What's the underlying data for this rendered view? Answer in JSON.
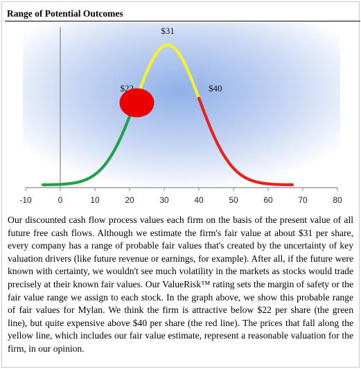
{
  "header": {
    "title": "Range of Potential Outcomes"
  },
  "colors": {
    "low": "#22a04b",
    "fair": "#f5f228",
    "high": "#e8201e",
    "marker": "#ee0000",
    "background_center": "#8fb0e8",
    "background_edge": "#ffffff"
  },
  "chart_data": {
    "type": "line",
    "title": "",
    "xlabel": "",
    "ylabel": "",
    "xlim": [
      -10,
      80
    ],
    "x_ticks": [
      -10,
      0,
      10,
      20,
      30,
      40,
      50,
      60,
      70,
      80
    ],
    "y_axis_at_x": 0,
    "distribution": {
      "type": "normal",
      "mean": 31,
      "std": 9.2
    },
    "curve_x_range": [
      -5,
      67
    ],
    "segments": [
      {
        "color": "green",
        "x_from": -5,
        "x_to": 22
      },
      {
        "color": "yellow",
        "x_from": 22,
        "x_to": 40
      },
      {
        "color": "red",
        "x_from": 40,
        "x_to": 67
      }
    ],
    "price_labels": [
      {
        "text": "$22",
        "x": 22
      },
      {
        "text": "$31",
        "x": 31
      },
      {
        "text": "$40",
        "x": 40
      }
    ],
    "current_marker": {
      "x": 21.5,
      "shape": "circle",
      "color": "red"
    },
    "grid": false,
    "legend": "none"
  },
  "body": {
    "paragraph": "Our discounted cash flow process values each firm on the basis of the present value of all future free cash flows. Although we estimate the firm's fair value at about $31 per share, every company has a range of probable fair values that's created by the uncertainty of key valuation drivers (like future revenue or earnings, for example). After all, if the future were known with certainty, we wouldn't see much volatility in the markets as stocks would trade precisely at their known fair values. Our ValueRisk™ rating sets the margin of safety or the fair value range we assign to each stock. In the graph above, we show this probable range of fair values for Mylan. We think the firm is attractive below $22 per share (the green line), but quite expensive above $40 per share (the red line). The prices that fall along the yellow line, which includes our fair value estimate, represent a reasonable valuation for the firm, in our opinion."
  }
}
